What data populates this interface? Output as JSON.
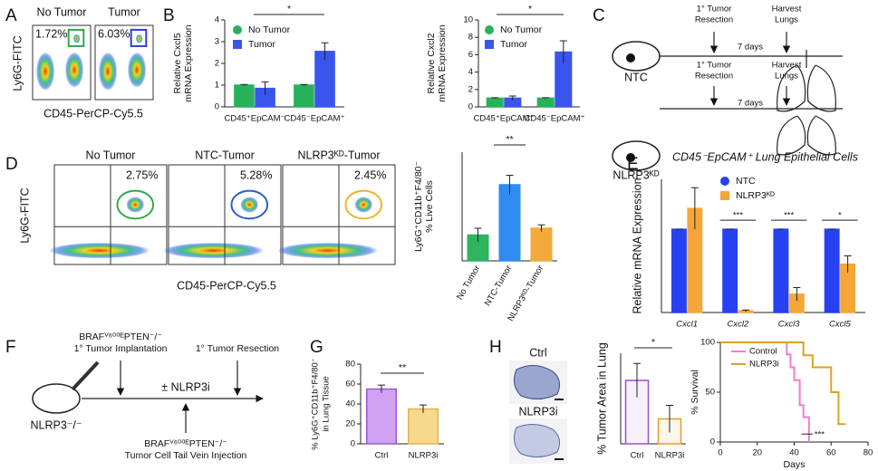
{
  "panels": {
    "labels": [
      "A",
      "B",
      "C",
      "D",
      "E",
      "F",
      "G",
      "H"
    ],
    "A": {
      "plots": [
        {
          "title": "No Tumor",
          "gate_percent": "1.72%",
          "gate_color": "#2faa4a"
        },
        {
          "title": "Tumor",
          "gate_percent": "6.03%",
          "gate_color": "#2b3fd6"
        }
      ],
      "y_label": "Ly6G-FITC",
      "x_label": "CD45-PerCP-Cy5.5"
    },
    "C": {
      "rows": [
        {
          "group": "NTC",
          "step1": [
            "1° Tumor",
            "Resection"
          ],
          "step2": [
            "Harvest",
            "Lungs"
          ],
          "interval": "7 days"
        },
        {
          "group": "NLRP3ᴷᴰ",
          "step1": [
            "1° Tumor",
            "Resection"
          ],
          "step2": [
            "Harvest",
            "Lungs"
          ],
          "interval": "7 days"
        }
      ]
    },
    "D": {
      "plots": [
        {
          "title": "No Tumor",
          "gate_percent": "2.75%",
          "gate_color": "#2faa4a"
        },
        {
          "title": "NTC-Tumor",
          "gate_percent": "5.28%",
          "gate_color": "#2b5fc4"
        },
        {
          "title": "NLRP3ᴷᴰ-Tumor",
          "gate_percent": "2.45%",
          "gate_color": "#f0b429"
        }
      ],
      "y_label": "Ly6G-FITC",
      "x_label": "CD45-PerCP-Cy5.5"
    },
    "F": {
      "implantation": [
        "BRAFⱽ⁶⁰⁰ᴱPTEN⁻/⁻",
        "1° Tumor Implantation"
      ],
      "resection": "1° Tumor Resection",
      "treatment": "± NLRP3i",
      "injection": [
        "BRAFⱽ⁶⁰⁰ᴱPTEN⁻/⁻",
        "Tumor Cell Tail Vein Injection"
      ],
      "mouse": "NLRP3⁻/⁻"
    },
    "H": {
      "images": [
        "Ctrl",
        "NLRP3i"
      ]
    }
  },
  "chart_data": [
    {
      "type": "bar",
      "y_label": [
        "Relative Cxcl5",
        "mRNA Expression"
      ],
      "categories": [
        "CD45⁺EpCAM⁻",
        "CD45⁻EpCAM⁺"
      ],
      "series": [
        {
          "name": "No Tumor",
          "color": "#27b25a",
          "values": [
            1,
            1
          ],
          "errors": [
            0.03,
            0.03
          ]
        },
        {
          "name": "Tumor",
          "color": "#3a55ee",
          "values": [
            0.85,
            2.55
          ],
          "errors": [
            0.3,
            0.4
          ]
        }
      ],
      "ylim": [
        0,
        4
      ],
      "yticks": [
        0,
        1,
        2,
        3,
        4
      ],
      "significance": "*",
      "legend": "upper left"
    },
    {
      "type": "bar",
      "y_label": [
        "Relative Cxcl2",
        "mRNA Expression"
      ],
      "categories": [
        "CD45⁺EpCAM⁻",
        "CD45⁻EpCAM⁺"
      ],
      "series": [
        {
          "name": "No Tumor",
          "color": "#27b25a",
          "values": [
            1,
            1
          ],
          "errors": [
            0.05,
            0.05
          ]
        },
        {
          "name": "Tumor",
          "color": "#3a55ee",
          "values": [
            1.0,
            6.3
          ],
          "errors": [
            0.25,
            1.3
          ]
        }
      ],
      "ylim": [
        0,
        10
      ],
      "yticks": [
        0,
        2,
        4,
        6,
        8,
        10
      ],
      "significance": "*",
      "legend": "upper left"
    },
    {
      "type": "bar",
      "y_label": [
        "Ly6G⁺CD11b⁺F4/80⁻",
        "% Live Cells"
      ],
      "categories": [
        "No Tumor",
        "NTC-Tumor",
        "NLRP3ᴷᴰ-Tumor"
      ],
      "values": [
        1.9,
        5.6,
        2.4
      ],
      "errors": [
        0.5,
        0.7,
        0.25
      ],
      "colors": [
        "#2eb35e",
        "#2f8cf0",
        "#f3a93b"
      ],
      "ylim": [
        0,
        8
      ],
      "significance": "**"
    },
    {
      "type": "bar",
      "title": "CD45⁻EpCAM⁺ Lung Epithelial Cells",
      "y_label": [
        "Relative mRNA  Expression"
      ],
      "categories": [
        "Cxcl1",
        "Cxcl2",
        "Cxcl3",
        "Cxcl5"
      ],
      "series": [
        {
          "name": "NTC",
          "color": "#2741f2",
          "values": [
            1,
            1,
            1,
            1
          ],
          "errors": [
            0,
            0,
            0,
            0
          ]
        },
        {
          "name": "NLRP3ᴷᴰ",
          "color": "#f6a638",
          "values": [
            1.25,
            0.02,
            0.22,
            0.58
          ],
          "errors": [
            0.25,
            0.01,
            0.08,
            0.1
          ]
        }
      ],
      "ylim": [
        0,
        1.6
      ],
      "significance": [
        null,
        "***",
        "***",
        "*"
      ],
      "legend": "upper right"
    },
    {
      "type": "bar",
      "y_label": [
        "% Ly6G⁺CD11b⁺F4/80⁻",
        "in Lung Tissue"
      ],
      "categories": [
        "Ctrl",
        "NLRP3i"
      ],
      "values": [
        55,
        35
      ],
      "errors": [
        4,
        4
      ],
      "colors": [
        "#cfa3f2",
        "#f7d98e"
      ],
      "edgecolors": [
        "#9a5cd0",
        "#e2b54a"
      ],
      "ylim": [
        0,
        80
      ],
      "yticks": [
        0,
        20,
        40,
        60,
        80
      ],
      "significance": "**"
    },
    {
      "type": "bar",
      "y_label": [
        "% Tumor Area in Lung"
      ],
      "categories": [
        "Ctrl",
        "NLRP3i"
      ],
      "values": [
        56,
        22
      ],
      "errors": [
        15,
        12
      ],
      "colors": [
        "#f7f0fb",
        "#fdf6ea"
      ],
      "edgecolors": [
        "#9a4fd6",
        "#e89a2c"
      ],
      "ylim": [
        0,
        80
      ],
      "significance": "*"
    },
    {
      "type": "line",
      "y_label": [
        "% Survival"
      ],
      "x_label": "Days",
      "xlim": [
        0,
        80
      ],
      "xticks": [
        0,
        20,
        40,
        60,
        80
      ],
      "ylim": [
        0,
        100
      ],
      "yticks": [
        0,
        50,
        100
      ],
      "series": [
        {
          "name": "Control",
          "color": "#f07ad8",
          "x": [
            0,
            36,
            36,
            38,
            38,
            40,
            40,
            43,
            43,
            45,
            45,
            48,
            48
          ],
          "values": [
            100,
            100,
            88,
            88,
            75,
            75,
            62,
            62,
            37,
            37,
            25,
            25,
            0
          ]
        },
        {
          "name": "NLRP3i",
          "color": "#d9a520",
          "x": [
            0,
            45,
            45,
            50,
            50,
            60,
            60,
            64,
            64,
            68
          ],
          "values": [
            100,
            100,
            87,
            87,
            75,
            75,
            50,
            50,
            18,
            18
          ]
        }
      ],
      "legend": "upper left",
      "significance": "***"
    }
  ]
}
